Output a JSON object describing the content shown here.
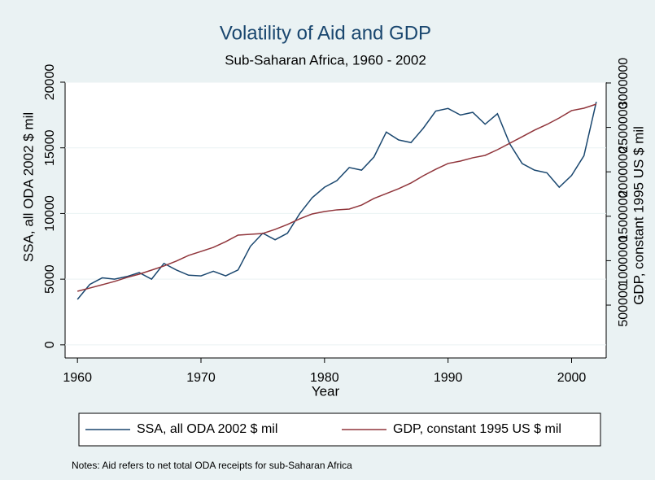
{
  "chart_data": {
    "type": "line",
    "title": "Volatility of Aid and GDP",
    "subtitle": "Sub-Saharan Africa, 1960 - 2002",
    "xlabel": "Year",
    "ylabel": "SSA, all ODA 2002 $ mil",
    "y2label": "GDP, constant 1995 US $ mil",
    "notes": "Notes: Aid refers to net total ODA receipts for sub-Saharan Africa",
    "x": [
      1960,
      1961,
      1962,
      1963,
      1964,
      1965,
      1966,
      1967,
      1968,
      1969,
      1970,
      1971,
      1972,
      1973,
      1974,
      1975,
      1976,
      1977,
      1978,
      1979,
      1980,
      1981,
      1982,
      1983,
      1984,
      1985,
      1986,
      1987,
      1988,
      1989,
      1990,
      1991,
      1992,
      1993,
      1994,
      1995,
      1996,
      1997,
      1998,
      1999,
      2000,
      2001,
      2002
    ],
    "series": [
      {
        "name": "SSA, all ODA 2002 $ mil",
        "color": "#1a476f",
        "axis": "y",
        "values": [
          3460,
          4600,
          5100,
          5000,
          5200,
          5500,
          5000,
          6200,
          5700,
          5300,
          5250,
          5600,
          5250,
          5700,
          7500,
          8500,
          8000,
          8500,
          10000,
          11200,
          12000,
          12500,
          13500,
          13300,
          14300,
          16200,
          15600,
          15400,
          16500,
          17800,
          18000,
          17500,
          17700,
          16800,
          17600,
          15300,
          13800,
          13300,
          13100,
          12000,
          12900,
          14400,
          18500
        ]
      },
      {
        "name": "GDP, constant 1995 US $ mil",
        "color": "#90353b",
        "axis": "y2",
        "values": [
          656000,
          692000,
          729000,
          766000,
          811000,
          848000,
          894000,
          940000,
          995000,
          1059000,
          1104000,
          1150000,
          1214000,
          1288000,
          1297000,
          1306000,
          1352000,
          1407000,
          1471000,
          1526000,
          1553000,
          1572000,
          1581000,
          1626000,
          1700000,
          1755000,
          1810000,
          1874000,
          1956000,
          2029000,
          2094000,
          2121000,
          2158000,
          2185000,
          2249000,
          2322000,
          2395000,
          2469000,
          2533000,
          2606000,
          2689000,
          2716000,
          2762000
        ]
      }
    ],
    "xlim": [
      1959,
      2002.8
    ],
    "xticks": [
      1960,
      1970,
      1980,
      1990,
      2000
    ],
    "ylim": [
      -1000,
      20000
    ],
    "yticks": [
      0,
      5000,
      10000,
      15000,
      20000
    ],
    "y2lim": [
      -95000,
      3009000
    ],
    "y2ticks": [
      500000,
      1000000,
      1500000,
      2000000,
      2500000,
      3000000
    ],
    "grid": true
  }
}
